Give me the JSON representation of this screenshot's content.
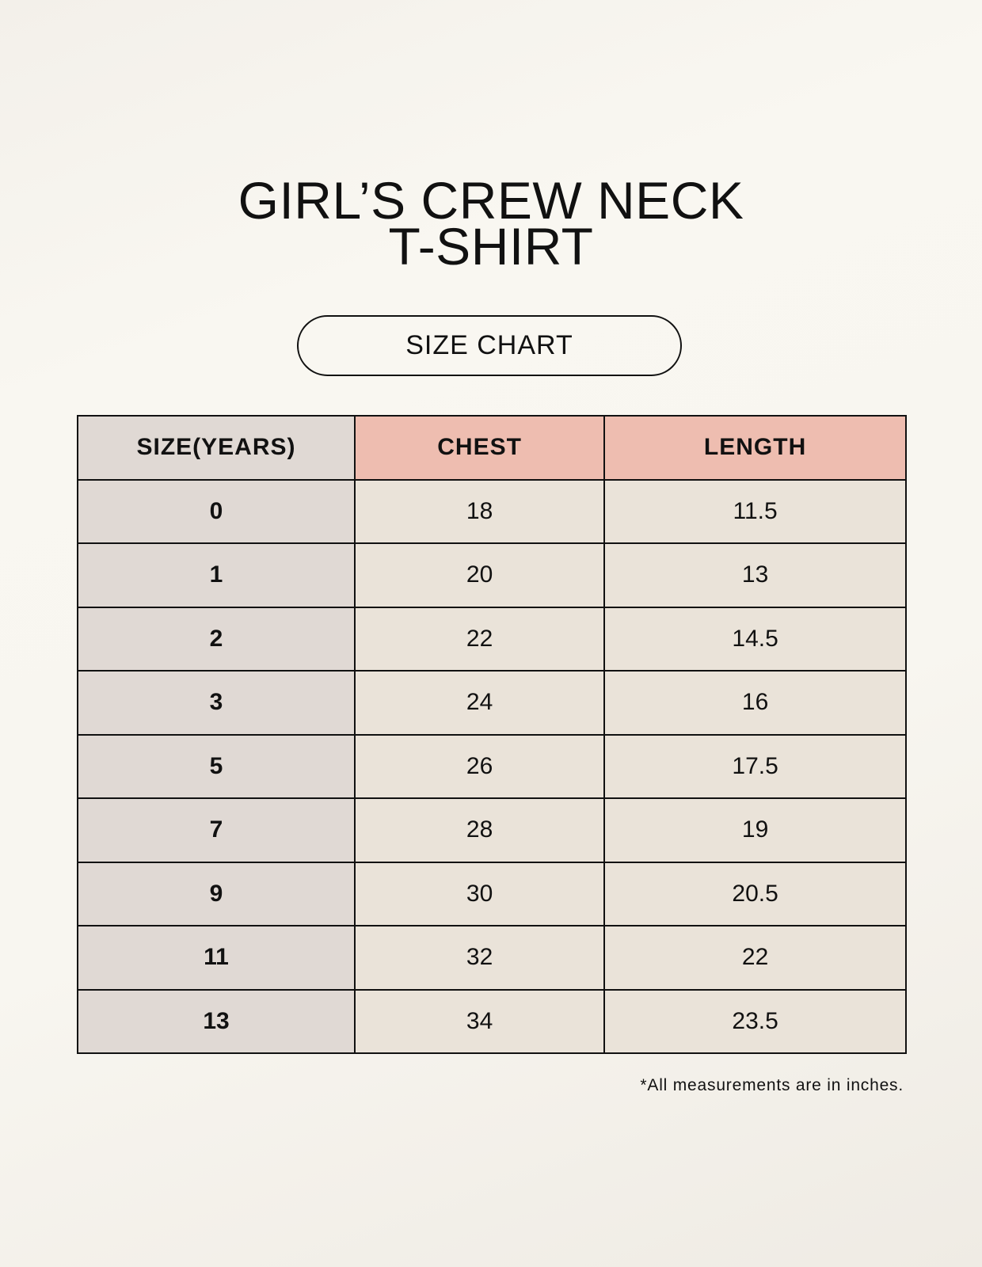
{
  "title": {
    "line1": "GIRL’S CREW NECK",
    "line2": "T-SHIRT"
  },
  "badge": "SIZE CHART",
  "table": {
    "headers": [
      "SIZE(YEARS)",
      "CHEST",
      "LENGTH"
    ],
    "rows": [
      [
        "0",
        "18",
        "11.5"
      ],
      [
        "1",
        "20",
        "13"
      ],
      [
        "2",
        "22",
        "14.5"
      ],
      [
        "3",
        "24",
        "16"
      ],
      [
        "5",
        "26",
        "17.5"
      ],
      [
        "7",
        "28",
        "19"
      ],
      [
        "9",
        "30",
        "20.5"
      ],
      [
        "11",
        "32",
        "22"
      ],
      [
        "13",
        "34",
        "23.5"
      ]
    ]
  },
  "footnote": "*All measurements are in inches.",
  "colors": {
    "size_column": "#e0d9d4",
    "header_accent": "#eebdb0",
    "cell": "#eae3d9"
  }
}
